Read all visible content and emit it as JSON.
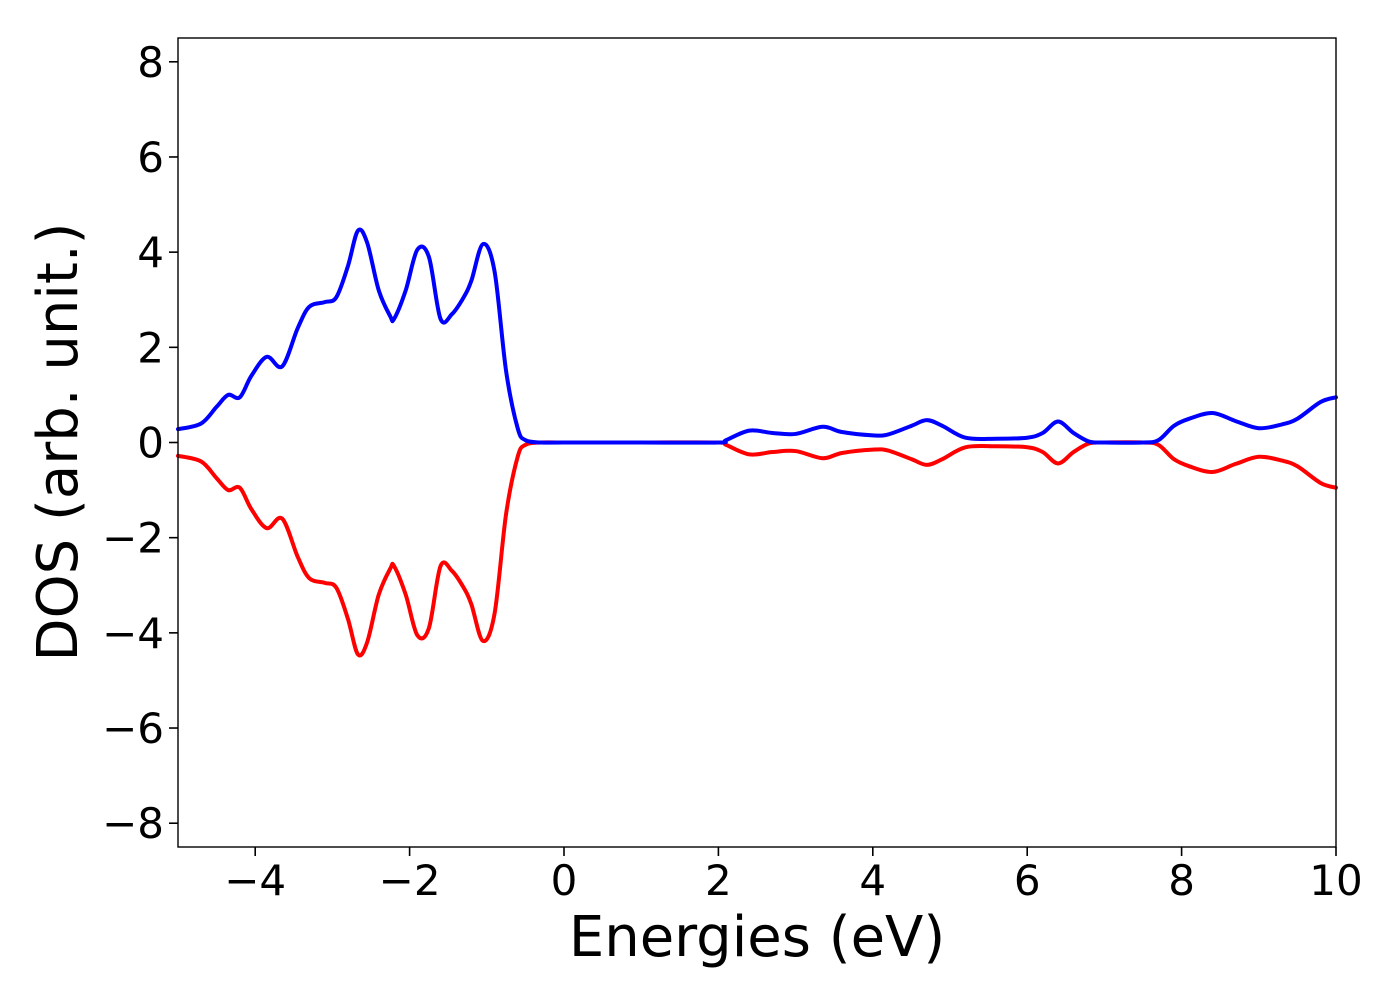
{
  "chart_data": {
    "type": "line",
    "title": "",
    "xlabel": "Energies (eV)",
    "ylabel": "DOS (arb. unit.)",
    "xlim": [
      -5,
      10
    ],
    "ylim": [
      -8.5,
      8.5
    ],
    "xticks": [
      -4,
      -2,
      0,
      2,
      4,
      6,
      8,
      10
    ],
    "yticks": [
      8,
      6,
      4,
      2,
      0,
      -2,
      -4,
      -6,
      -8
    ],
    "xtick_labels": [
      "−4",
      "−2",
      "0",
      "2",
      "4",
      "6",
      "8",
      "10"
    ],
    "ytick_labels": [
      "8",
      "6",
      "4",
      "2",
      "0",
      "−2",
      "−4",
      "−6",
      "−8"
    ],
    "grid": false,
    "legend": "none",
    "series": [
      {
        "color": "#0000ff",
        "x": [
          -5.0,
          -4.7,
          -4.5,
          -4.35,
          -4.2,
          -4.05,
          -3.85,
          -3.65,
          -3.45,
          -3.3,
          -3.1,
          -2.95,
          -2.8,
          -2.67,
          -2.55,
          -2.4,
          -2.25,
          -2.2,
          -2.05,
          -1.9,
          -1.75,
          -1.6,
          -1.45,
          -1.3,
          -1.2,
          -1.05,
          -0.9,
          -0.75,
          -0.6,
          -0.5,
          -0.3,
          0.0,
          1.0,
          2.0,
          2.1,
          2.4,
          2.7,
          3.0,
          3.35,
          3.6,
          4.0,
          4.2,
          4.5,
          4.7,
          4.9,
          5.2,
          5.6,
          6.0,
          6.2,
          6.4,
          6.6,
          6.8,
          7.0,
          7.5,
          7.7,
          7.9,
          8.1,
          8.4,
          8.7,
          9.0,
          9.3,
          9.5,
          9.8,
          10.0
        ],
        "values": [
          0.28,
          0.4,
          0.75,
          1.0,
          0.95,
          1.4,
          1.8,
          1.6,
          2.4,
          2.85,
          2.95,
          3.05,
          3.7,
          4.45,
          4.2,
          3.2,
          2.65,
          2.6,
          3.2,
          4.05,
          3.9,
          2.6,
          2.7,
          3.05,
          3.4,
          4.17,
          3.6,
          1.5,
          0.3,
          0.05,
          0.0,
          0.0,
          0.0,
          0.0,
          0.05,
          0.25,
          0.2,
          0.18,
          0.33,
          0.22,
          0.15,
          0.17,
          0.35,
          0.47,
          0.35,
          0.1,
          0.08,
          0.1,
          0.2,
          0.44,
          0.2,
          0.02,
          0.0,
          0.0,
          0.05,
          0.35,
          0.5,
          0.62,
          0.45,
          0.3,
          0.38,
          0.5,
          0.85,
          0.95
        ]
      },
      {
        "color": "#ff0000",
        "x": [
          -5.0,
          -4.7,
          -4.5,
          -4.35,
          -4.2,
          -4.05,
          -3.85,
          -3.65,
          -3.45,
          -3.3,
          -3.1,
          -2.95,
          -2.8,
          -2.67,
          -2.55,
          -2.4,
          -2.25,
          -2.2,
          -2.05,
          -1.9,
          -1.75,
          -1.6,
          -1.45,
          -1.3,
          -1.2,
          -1.05,
          -0.9,
          -0.75,
          -0.6,
          -0.5,
          -0.3,
          0.0,
          1.0,
          2.0,
          2.1,
          2.4,
          2.7,
          3.0,
          3.35,
          3.6,
          4.0,
          4.2,
          4.5,
          4.7,
          4.9,
          5.2,
          5.6,
          6.0,
          6.2,
          6.4,
          6.6,
          6.8,
          7.0,
          7.5,
          7.7,
          7.9,
          8.1,
          8.4,
          8.7,
          9.0,
          9.3,
          9.5,
          9.8,
          10.0
        ],
        "values": [
          -0.28,
          -0.4,
          -0.75,
          -1.0,
          -0.95,
          -1.4,
          -1.8,
          -1.6,
          -2.4,
          -2.85,
          -2.95,
          -3.05,
          -3.7,
          -4.45,
          -4.2,
          -3.2,
          -2.65,
          -2.6,
          -3.2,
          -4.05,
          -3.9,
          -2.6,
          -2.7,
          -3.05,
          -3.4,
          -4.17,
          -3.6,
          -1.5,
          -0.3,
          -0.05,
          0.0,
          0.0,
          0.0,
          0.0,
          -0.05,
          -0.25,
          -0.2,
          -0.18,
          -0.33,
          -0.22,
          -0.15,
          -0.17,
          -0.35,
          -0.47,
          -0.35,
          -0.1,
          -0.08,
          -0.1,
          -0.2,
          -0.44,
          -0.2,
          -0.02,
          0.0,
          0.0,
          -0.05,
          -0.35,
          -0.5,
          -0.62,
          -0.45,
          -0.3,
          -0.38,
          -0.5,
          -0.85,
          -0.95
        ]
      }
    ]
  }
}
